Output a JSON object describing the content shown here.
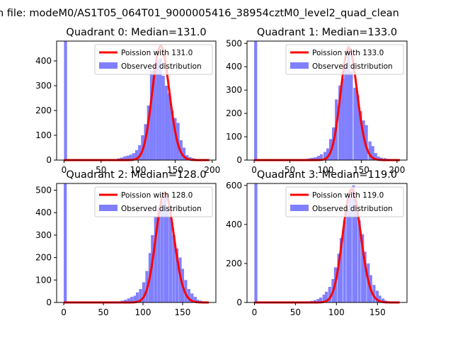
{
  "figure": {
    "suptitle": "n file: modeM0/AS1T05_064T01_9000005416_38954cztM0_level2_quad_clean"
  },
  "colors": {
    "histogram": "#8080ff",
    "fit_line": "#ff0000",
    "axes": "#000000"
  },
  "chart_data": [
    {
      "type": "bar",
      "title": "Quadrant 0: Median=131.0",
      "xlim": [
        -10,
        205
      ],
      "ylim": [
        0,
        480
      ],
      "xticks": [
        0,
        50,
        100,
        150,
        200
      ],
      "yticks": [
        0,
        100,
        200,
        300,
        400
      ],
      "bin_width": 4,
      "series": [
        {
          "name": "Observed distribution",
          "kind": "histogram",
          "bins": [
            {
              "x": 0,
              "count": 480
            },
            {
              "x": 64,
              "count": 2
            },
            {
              "x": 68,
              "count": 3
            },
            {
              "x": 72,
              "count": 7
            },
            {
              "x": 76,
              "count": 10
            },
            {
              "x": 80,
              "count": 15
            },
            {
              "x": 84,
              "count": 18
            },
            {
              "x": 88,
              "count": 22
            },
            {
              "x": 92,
              "count": 28
            },
            {
              "x": 96,
              "count": 40
            },
            {
              "x": 100,
              "count": 60
            },
            {
              "x": 104,
              "count": 100
            },
            {
              "x": 108,
              "count": 145
            },
            {
              "x": 112,
              "count": 220
            },
            {
              "x": 116,
              "count": 360
            },
            {
              "x": 120,
              "count": 385
            },
            {
              "x": 124,
              "count": 400
            },
            {
              "x": 128,
              "count": 410
            },
            {
              "x": 132,
              "count": 340
            },
            {
              "x": 136,
              "count": 300
            },
            {
              "x": 140,
              "count": 270
            },
            {
              "x": 144,
              "count": 200
            },
            {
              "x": 148,
              "count": 170
            },
            {
              "x": 152,
              "count": 150
            },
            {
              "x": 156,
              "count": 80
            },
            {
              "x": 160,
              "count": 50
            },
            {
              "x": 164,
              "count": 20
            },
            {
              "x": 168,
              "count": 12
            },
            {
              "x": 172,
              "count": 8
            },
            {
              "x": 176,
              "count": 5
            },
            {
              "x": 180,
              "count": 3
            },
            {
              "x": 184,
              "count": 2
            },
            {
              "x": 188,
              "count": 1
            }
          ]
        },
        {
          "name": "Poission with 131.0",
          "kind": "poisson",
          "lambda": 131.0,
          "x_range": [
            0,
            196
          ],
          "peak": 460
        }
      ]
    },
    {
      "type": "bar",
      "title": "Quadrant 1: Median=133.0",
      "xlim": [
        -10,
        214
      ],
      "ylim": [
        0,
        510
      ],
      "xticks": [
        0,
        50,
        100,
        150,
        200
      ],
      "yticks": [
        0,
        100,
        200,
        300,
        400,
        500
      ],
      "bin_width": 4.2,
      "series": [
        {
          "name": "Observed distribution",
          "kind": "histogram",
          "bins": [
            {
              "x": 0,
              "count": 510
            },
            {
              "x": 63,
              "count": 2
            },
            {
              "x": 67,
              "count": 3
            },
            {
              "x": 71,
              "count": 5
            },
            {
              "x": 76,
              "count": 8
            },
            {
              "x": 80,
              "count": 10
            },
            {
              "x": 84,
              "count": 12
            },
            {
              "x": 88,
              "count": 18
            },
            {
              "x": 92,
              "count": 25
            },
            {
              "x": 97,
              "count": 35
            },
            {
              "x": 101,
              "count": 50
            },
            {
              "x": 105,
              "count": 90
            },
            {
              "x": 109,
              "count": 140
            },
            {
              "x": 113,
              "count": 260
            },
            {
              "x": 118,
              "count": 320
            },
            {
              "x": 122,
              "count": 350
            },
            {
              "x": 126,
              "count": 400
            },
            {
              "x": 130,
              "count": 490
            },
            {
              "x": 134,
              "count": 380
            },
            {
              "x": 139,
              "count": 310
            },
            {
              "x": 143,
              "count": 280
            },
            {
              "x": 147,
              "count": 210
            },
            {
              "x": 151,
              "count": 170
            },
            {
              "x": 155,
              "count": 150
            },
            {
              "x": 160,
              "count": 80
            },
            {
              "x": 164,
              "count": 60
            },
            {
              "x": 168,
              "count": 30
            },
            {
              "x": 172,
              "count": 15
            },
            {
              "x": 176,
              "count": 10
            },
            {
              "x": 181,
              "count": 8
            },
            {
              "x": 185,
              "count": 5
            },
            {
              "x": 189,
              "count": 4
            },
            {
              "x": 193,
              "count": 3
            }
          ]
        },
        {
          "name": "Poission with 133.0",
          "kind": "poisson",
          "lambda": 133.0,
          "x_range": [
            0,
            204
          ],
          "peak": 480
        }
      ]
    },
    {
      "type": "bar",
      "title": "Quadrant 2: Median=128.0",
      "xlim": [
        -9,
        192
      ],
      "ylim": [
        0,
        530
      ],
      "xticks": [
        0,
        50,
        100,
        150
      ],
      "yticks": [
        0,
        100,
        200,
        300,
        400,
        500
      ],
      "bin_width": 3.8,
      "series": [
        {
          "name": "Observed distribution",
          "kind": "histogram",
          "bins": [
            {
              "x": 0,
              "count": 530
            },
            {
              "x": 61,
              "count": 2
            },
            {
              "x": 65,
              "count": 3
            },
            {
              "x": 69,
              "count": 5
            },
            {
              "x": 72,
              "count": 8
            },
            {
              "x": 76,
              "count": 12
            },
            {
              "x": 80,
              "count": 18
            },
            {
              "x": 84,
              "count": 25
            },
            {
              "x": 88,
              "count": 30
            },
            {
              "x": 91,
              "count": 45
            },
            {
              "x": 95,
              "count": 60
            },
            {
              "x": 99,
              "count": 90
            },
            {
              "x": 103,
              "count": 140
            },
            {
              "x": 107,
              "count": 220
            },
            {
              "x": 110,
              "count": 300
            },
            {
              "x": 114,
              "count": 380
            },
            {
              "x": 118,
              "count": 420
            },
            {
              "x": 122,
              "count": 450
            },
            {
              "x": 126,
              "count": 480
            },
            {
              "x": 129,
              "count": 420
            },
            {
              "x": 133,
              "count": 380
            },
            {
              "x": 137,
              "count": 300
            },
            {
              "x": 141,
              "count": 240
            },
            {
              "x": 145,
              "count": 200
            },
            {
              "x": 148,
              "count": 150
            },
            {
              "x": 152,
              "count": 100
            },
            {
              "x": 156,
              "count": 60
            },
            {
              "x": 160,
              "count": 40
            },
            {
              "x": 164,
              "count": 25
            },
            {
              "x": 167,
              "count": 12
            },
            {
              "x": 171,
              "count": 8
            },
            {
              "x": 175,
              "count": 5
            },
            {
              "x": 179,
              "count": 3
            }
          ]
        },
        {
          "name": "Poission with 128.0",
          "kind": "poisson",
          "lambda": 128.0,
          "x_range": [
            0,
            183
          ],
          "peak": 490
        }
      ]
    },
    {
      "type": "bar",
      "title": "Quadrant 3: Median=119.0",
      "xlim": [
        -9,
        186
      ],
      "ylim": [
        0,
        610
      ],
      "xticks": [
        0,
        50,
        100,
        150
      ],
      "yticks": [
        0,
        200,
        400,
        600
      ],
      "bin_width": 3.6,
      "series": [
        {
          "name": "Observed distribution",
          "kind": "histogram",
          "bins": [
            {
              "x": 0,
              "count": 610
            },
            {
              "x": 58,
              "count": 2
            },
            {
              "x": 61,
              "count": 3
            },
            {
              "x": 65,
              "count": 5
            },
            {
              "x": 68,
              "count": 8
            },
            {
              "x": 72,
              "count": 12
            },
            {
              "x": 76,
              "count": 18
            },
            {
              "x": 79,
              "count": 25
            },
            {
              "x": 83,
              "count": 40
            },
            {
              "x": 86,
              "count": 55
            },
            {
              "x": 90,
              "count": 80
            },
            {
              "x": 94,
              "count": 120
            },
            {
              "x": 97,
              "count": 180
            },
            {
              "x": 101,
              "count": 250
            },
            {
              "x": 104,
              "count": 330
            },
            {
              "x": 108,
              "count": 420
            },
            {
              "x": 112,
              "count": 480
            },
            {
              "x": 115,
              "count": 540
            },
            {
              "x": 119,
              "count": 600
            },
            {
              "x": 122,
              "count": 520
            },
            {
              "x": 126,
              "count": 420
            },
            {
              "x": 130,
              "count": 350
            },
            {
              "x": 133,
              "count": 260
            },
            {
              "x": 137,
              "count": 200
            },
            {
              "x": 140,
              "count": 140
            },
            {
              "x": 144,
              "count": 90
            },
            {
              "x": 148,
              "count": 60
            },
            {
              "x": 151,
              "count": 35
            },
            {
              "x": 155,
              "count": 20
            },
            {
              "x": 158,
              "count": 10
            },
            {
              "x": 162,
              "count": 6
            },
            {
              "x": 166,
              "count": 4
            },
            {
              "x": 169,
              "count": 2
            }
          ]
        },
        {
          "name": "Poission with 119.0",
          "kind": "poisson",
          "lambda": 119.0,
          "x_range": [
            0,
            177
          ],
          "peak": 580
        }
      ]
    }
  ]
}
